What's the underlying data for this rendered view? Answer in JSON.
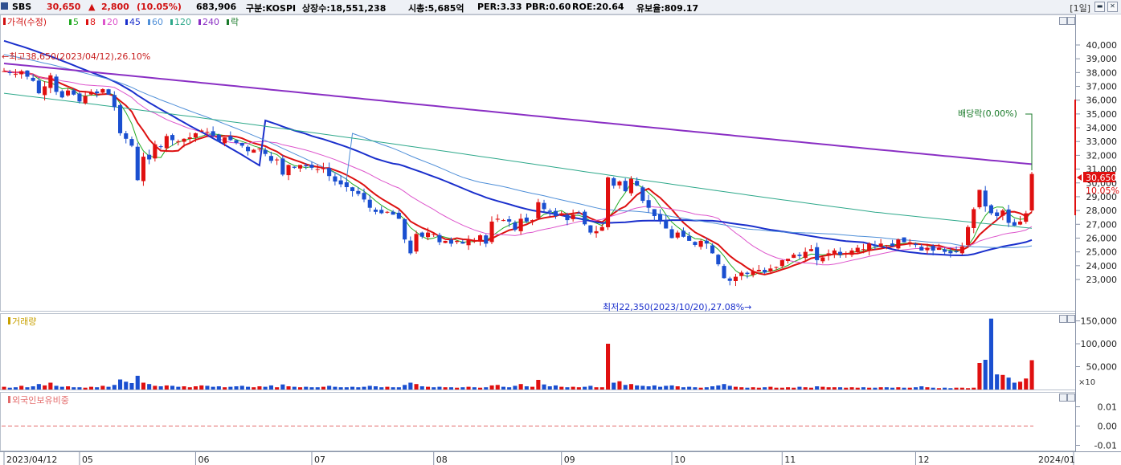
{
  "header": {
    "name": "SBS",
    "price": "30,650",
    "change_arrow": "▲",
    "change": "2,800",
    "change_pct": "(10.05%)",
    "volume": "683,906",
    "market": "구분:KOSPI",
    "listed_shares": "상장수:18,551,238",
    "market_cap": "시총:5,685억",
    "per": "PER:3.33",
    "pbr": "PBR:0.60",
    "roe": "ROE:20.64",
    "retention": "유보율:809.17",
    "period": "[1일]"
  },
  "price_panel": {
    "legend_prefix": "가격(수정)",
    "ma_legend": [
      {
        "label": "5",
        "color": "#22aa22"
      },
      {
        "label": "8",
        "color": "#dd1111"
      },
      {
        "label": "20",
        "color": "#dd55cc"
      },
      {
        "label": "45",
        "color": "#1a2fcc"
      },
      {
        "label": "60",
        "color": "#4f8fd8"
      },
      {
        "label": "120",
        "color": "#2da88a"
      },
      {
        "label": "240",
        "color": "#8a2fc4"
      }
    ],
    "legend_suffix": "락",
    "high_annotation": "←최고38,650(2023/04/12),26.10%",
    "low_annotation": "최저22,350(2023/10/20),27.08%→",
    "dividend_annotation": "배당락(0.00%)",
    "last_price_tag": "30,650",
    "last_pct_tag": "10.05%"
  },
  "volume_panel": {
    "title": "거래량",
    "unit_label": "×10"
  },
  "foreign_panel": {
    "title": "외국인보유비중"
  },
  "chart_data": [
    {
      "type": "candlestick",
      "title": "SBS 일봉",
      "ylim": [
        21500,
        40900
      ],
      "y_ticks": [
        "40,000",
        "39,000",
        "38,000",
        "37,000",
        "36,000",
        "35,000",
        "34,000",
        "33,000",
        "32,000",
        "31,000",
        "30,000",
        "29,000",
        "28,000",
        "27,000",
        "26,000",
        "25,000",
        "24,000",
        "23,000"
      ],
      "x_ticks": [
        "2023/04/12",
        "05",
        "06",
        "07",
        "08",
        "09",
        "10",
        "11",
        "12",
        "2024/01"
      ],
      "x_tick_index": [
        0,
        13,
        33,
        53,
        74,
        96,
        115,
        134,
        157,
        179
      ],
      "closes": [
        38100,
        38000,
        37900,
        38100,
        37700,
        37400,
        36500,
        37000,
        37800,
        36600,
        36200,
        36700,
        36400,
        35900,
        36300,
        36600,
        36500,
        36800,
        36400,
        35500,
        33600,
        33200,
        32700,
        30200,
        31900,
        31700,
        32800,
        32600,
        33400,
        33100,
        33000,
        33200,
        33300,
        33600,
        33800,
        33700,
        33400,
        33000,
        33300,
        33100,
        32900,
        32700,
        32300,
        32400,
        32500,
        32100,
        31600,
        31700,
        30600,
        31300,
        31100,
        31300,
        31200,
        31100,
        31000,
        31100,
        30500,
        30100,
        29900,
        29700,
        29400,
        29200,
        28800,
        28200,
        27900,
        27800,
        27900,
        27700,
        27400,
        25900,
        24900,
        26300,
        26100,
        26400,
        26300,
        25700,
        25800,
        25600,
        25800,
        25600,
        25900,
        25800,
        26200,
        25600,
        27200,
        27400,
        27300,
        27200,
        26600,
        27400,
        27200,
        27300,
        28600,
        28100,
        27900,
        27600,
        27800,
        27300,
        27700,
        27800,
        27000,
        26400,
        26500,
        26800,
        30400,
        29800,
        30100,
        29400,
        30300,
        29800,
        28700,
        28200,
        27600,
        27300,
        26700,
        26000,
        26400,
        26100,
        25800,
        25500,
        25800,
        25600,
        24900,
        24100,
        23100,
        22900,
        23200,
        23500,
        23400,
        23600,
        23700,
        23500,
        23800,
        23900,
        24400,
        24500,
        24800,
        24700,
        25000,
        25200,
        24400,
        24600,
        24900,
        25100,
        24800,
        24900,
        25100,
        25300,
        25200,
        25600,
        25400,
        25600,
        25500,
        25400,
        25900,
        25700,
        25700,
        25500,
        25100,
        25300,
        25100,
        25300,
        25000,
        24900,
        25000,
        25400,
        26800,
        28100,
        29500,
        28300,
        27800,
        27600,
        28000,
        27100,
        26900,
        27200,
        27800,
        30650
      ]
    },
    {
      "type": "bar",
      "title": "거래량",
      "ylim": [
        0,
        165000
      ],
      "y_ticks": [
        "150,000",
        "100,000",
        "50,000"
      ],
      "values": [
        6000,
        4000,
        5000,
        8000,
        5000,
        7000,
        12000,
        9000,
        15000,
        8000,
        6000,
        7000,
        5000,
        5000,
        4000,
        6000,
        5000,
        8000,
        6000,
        10000,
        22000,
        17000,
        14000,
        30000,
        15000,
        12000,
        8000,
        7000,
        9000,
        8000,
        6000,
        7000,
        5000,
        7000,
        9000,
        8000,
        6000,
        7000,
        5000,
        6000,
        7000,
        8000,
        6000,
        5000,
        7000,
        6000,
        9000,
        5000,
        11000,
        7000,
        6000,
        5000,
        6000,
        5000,
        5000,
        6000,
        8000,
        6000,
        5000,
        5000,
        6000,
        5000,
        6000,
        8000,
        7000,
        5000,
        6000,
        5000,
        5000,
        10000,
        15000,
        12000,
        7000,
        6000,
        5000,
        6000,
        5000,
        5000,
        4000,
        5000,
        6000,
        5000,
        4000,
        5000,
        9000,
        10000,
        6000,
        5000,
        8000,
        12000,
        7000,
        6000,
        21000,
        11000,
        7000,
        9000,
        6000,
        5000,
        6000,
        5000,
        6000,
        8000,
        5000,
        5000,
        100000,
        15000,
        18000,
        10000,
        12000,
        9000,
        8000,
        7000,
        9000,
        6000,
        8000,
        9000,
        7000,
        5000,
        6000,
        5000,
        4000,
        5000,
        7000,
        9000,
        12000,
        8000,
        6000,
        5000,
        4000,
        5000,
        4000,
        5000,
        6000,
        4000,
        4000,
        5000,
        4000,
        6000,
        5000,
        4000,
        7000,
        6000,
        5000,
        5000,
        5000,
        4000,
        5000,
        4000,
        5000,
        4000,
        4000,
        5000,
        5000,
        4000,
        5000,
        4000,
        4000,
        5000,
        7000,
        5000,
        4000,
        3000,
        4000,
        3000,
        4000,
        4000,
        3000,
        4000,
        58000,
        65000,
        155000,
        33000,
        32000,
        26000,
        15000,
        17000,
        24000,
        64000
      ]
    },
    {
      "type": "line",
      "title": "외국인보유비중",
      "ylim": [
        -0.012,
        0.012
      ],
      "y_ticks": [
        "0.01",
        "0.00",
        "-0.01"
      ],
      "values": [
        0
      ]
    }
  ]
}
